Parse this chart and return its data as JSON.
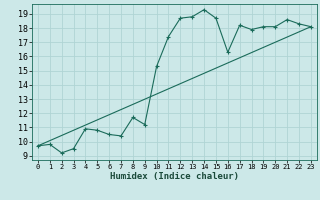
{
  "xlabel": "Humidex (Indice chaleur)",
  "background_color": "#cce8e8",
  "grid_color": "#b0d4d4",
  "line_color": "#1a6b5a",
  "xlim": [
    -0.5,
    23.5
  ],
  "ylim": [
    8.7,
    19.7
  ],
  "x_ticks": [
    0,
    1,
    2,
    3,
    4,
    5,
    6,
    7,
    8,
    9,
    10,
    11,
    12,
    13,
    14,
    15,
    16,
    17,
    18,
    19,
    20,
    21,
    22,
    23
  ],
  "y_ticks": [
    9,
    10,
    11,
    12,
    13,
    14,
    15,
    16,
    17,
    18,
    19
  ],
  "line1_x": [
    0,
    1,
    2,
    3,
    4,
    5,
    6,
    7,
    8,
    9,
    10,
    11,
    12,
    13,
    14,
    15,
    16,
    17,
    18,
    19,
    20,
    21,
    22,
    23
  ],
  "line1_y": [
    9.7,
    9.8,
    9.2,
    9.5,
    10.9,
    10.8,
    10.5,
    10.4,
    11.7,
    11.2,
    15.3,
    17.4,
    18.7,
    18.8,
    19.3,
    18.7,
    16.3,
    18.2,
    17.9,
    18.1,
    18.1,
    18.6,
    18.3,
    18.1
  ],
  "line2_x": [
    0,
    23
  ],
  "line2_y": [
    9.7,
    18.1
  ]
}
